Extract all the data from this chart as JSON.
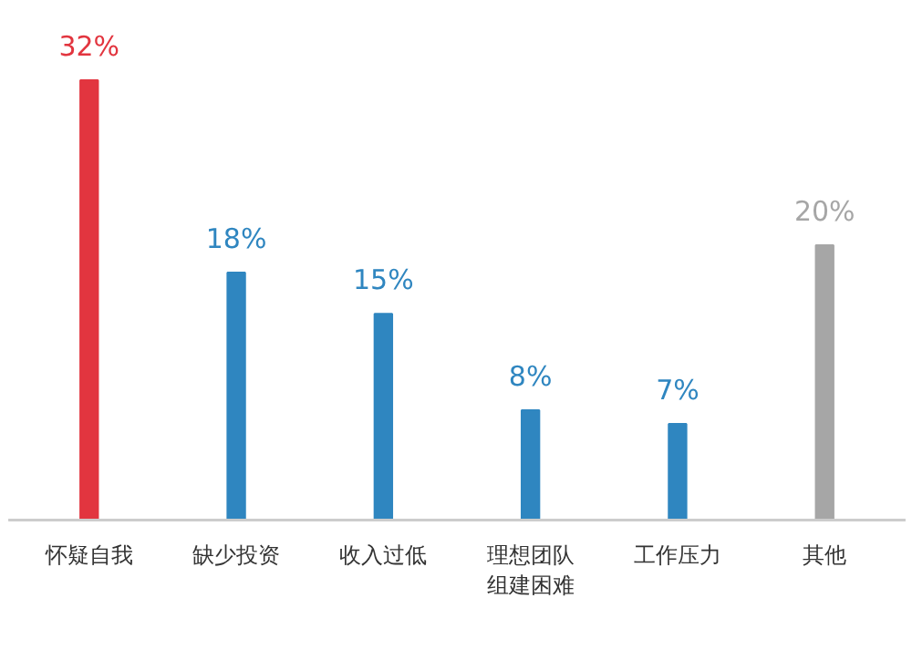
{
  "chart_data": {
    "type": "bar",
    "categories": [
      "怀疑自我",
      "缺少投资",
      "收入过低",
      "理想团队组建困难",
      "工作压力",
      "其他"
    ],
    "values": [
      32,
      18,
      15,
      8,
      7,
      20
    ],
    "value_labels": [
      "32%",
      "18%",
      "15%",
      "8%",
      "7%",
      "20%"
    ],
    "colors": [
      "#e2353f",
      "#2f86c0",
      "#2f86c0",
      "#2f86c0",
      "#2f86c0",
      "#a6a6a6"
    ]
  }
}
